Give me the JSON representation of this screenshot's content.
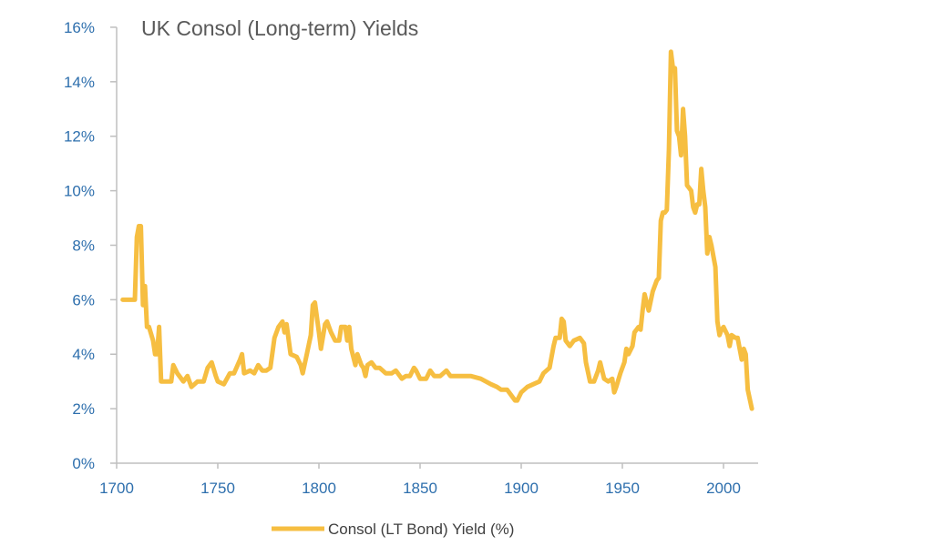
{
  "chart_data": {
    "type": "line",
    "title": "UK Consol (Long-term) Yields",
    "xlabel": "",
    "ylabel": "",
    "xlim": [
      1700,
      2020
    ],
    "ylim": [
      0,
      16
    ],
    "x_ticks": [
      "1700",
      "1750",
      "1800",
      "1850",
      "1900",
      "1950",
      "2000"
    ],
    "y_ticks": [
      "0%",
      "2%",
      "4%",
      "6%",
      "8%",
      "10%",
      "12%",
      "14%",
      "16%"
    ],
    "grid": false,
    "legend_position": "bottom",
    "colors": {
      "line": "#f6be41",
      "tick_text": "#2e6fad",
      "axis": "#bfbfbf"
    },
    "series": [
      {
        "name": "Consol (LT Bond) Yield (%)",
        "x": [
          1703,
          1709,
          1710,
          1711,
          1712,
          1713,
          1714,
          1715,
          1716,
          1718,
          1719,
          1720,
          1721,
          1722,
          1725,
          1727,
          1728,
          1730,
          1733,
          1735,
          1737,
          1740,
          1743,
          1745,
          1747,
          1749,
          1750,
          1753,
          1756,
          1758,
          1761,
          1762,
          1763,
          1766,
          1768,
          1770,
          1772,
          1774,
          1776,
          1778,
          1780,
          1782,
          1783,
          1784,
          1786,
          1789,
          1791,
          1792,
          1794,
          1796,
          1797,
          1798,
          1800,
          1801,
          1803,
          1804,
          1806,
          1808,
          1810,
          1811,
          1813,
          1814,
          1815,
          1816,
          1818,
          1819,
          1821,
          1822,
          1823,
          1824,
          1826,
          1828,
          1830,
          1833,
          1836,
          1838,
          1841,
          1843,
          1845,
          1847,
          1848,
          1850,
          1853,
          1855,
          1857,
          1860,
          1863,
          1865,
          1870,
          1875,
          1880,
          1885,
          1888,
          1890,
          1893,
          1897,
          1898,
          1900,
          1903,
          1906,
          1909,
          1911,
          1914,
          1916,
          1917,
          1919,
          1920,
          1921,
          1922,
          1924,
          1926,
          1929,
          1931,
          1932,
          1934,
          1936,
          1938,
          1939,
          1941,
          1943,
          1945,
          1946,
          1947,
          1949,
          1951,
          1952,
          1953,
          1955,
          1956,
          1958,
          1959,
          1960,
          1961,
          1963,
          1965,
          1967,
          1968,
          1969,
          1970,
          1971,
          1972,
          1973,
          1974,
          1975,
          1976,
          1977,
          1978,
          1979,
          1980,
          1981,
          1982,
          1983,
          1984,
          1985,
          1986,
          1987,
          1988,
          1989,
          1990,
          1991,
          1992,
          1993,
          1994,
          1996,
          1997,
          1998,
          1999,
          2000,
          2002,
          2003,
          2004,
          2006,
          2007,
          2009,
          2010,
          2011,
          2012,
          2014
        ],
        "values": [
          6.0,
          6.0,
          8.3,
          8.7,
          8.7,
          5.8,
          6.5,
          5.0,
          5.0,
          4.5,
          4.0,
          4.0,
          5.0,
          3.0,
          3.0,
          3.0,
          3.6,
          3.3,
          3.0,
          3.2,
          2.8,
          3.0,
          3.0,
          3.5,
          3.7,
          3.2,
          3.0,
          2.9,
          3.3,
          3.3,
          3.8,
          4.0,
          3.3,
          3.4,
          3.3,
          3.6,
          3.4,
          3.4,
          3.5,
          4.6,
          5.0,
          5.2,
          4.8,
          5.1,
          4.0,
          3.9,
          3.6,
          3.3,
          4.0,
          4.7,
          5.8,
          5.9,
          4.8,
          4.2,
          5.1,
          5.2,
          4.8,
          4.5,
          4.5,
          5.0,
          5.0,
          4.5,
          5.0,
          4.2,
          3.6,
          4.0,
          3.6,
          3.5,
          3.2,
          3.6,
          3.7,
          3.5,
          3.5,
          3.3,
          3.3,
          3.4,
          3.1,
          3.2,
          3.2,
          3.5,
          3.4,
          3.1,
          3.1,
          3.4,
          3.2,
          3.2,
          3.4,
          3.2,
          3.2,
          3.2,
          3.1,
          2.9,
          2.8,
          2.7,
          2.7,
          2.3,
          2.3,
          2.6,
          2.8,
          2.9,
          3.0,
          3.3,
          3.5,
          4.3,
          4.6,
          4.6,
          5.3,
          5.2,
          4.5,
          4.3,
          4.5,
          4.6,
          4.4,
          3.7,
          3.0,
          3.0,
          3.4,
          3.7,
          3.1,
          3.0,
          3.1,
          2.6,
          2.8,
          3.3,
          3.7,
          4.2,
          4.0,
          4.3,
          4.8,
          5.0,
          4.9,
          5.6,
          6.2,
          5.6,
          6.3,
          6.7,
          6.8,
          8.9,
          9.2,
          9.2,
          9.3,
          11.5,
          15.1,
          14.5,
          14.5,
          12.2,
          12.0,
          11.3,
          13.0,
          12.0,
          10.2,
          10.1,
          10.0,
          9.4,
          9.2,
          9.5,
          9.5,
          10.8,
          10.0,
          9.4,
          7.7,
          8.3,
          8.0,
          7.2,
          5.2,
          4.7,
          4.9,
          5.0,
          4.7,
          4.3,
          4.7,
          4.6,
          4.6,
          3.8,
          4.2,
          4.0,
          2.7,
          2.0
        ]
      }
    ]
  }
}
